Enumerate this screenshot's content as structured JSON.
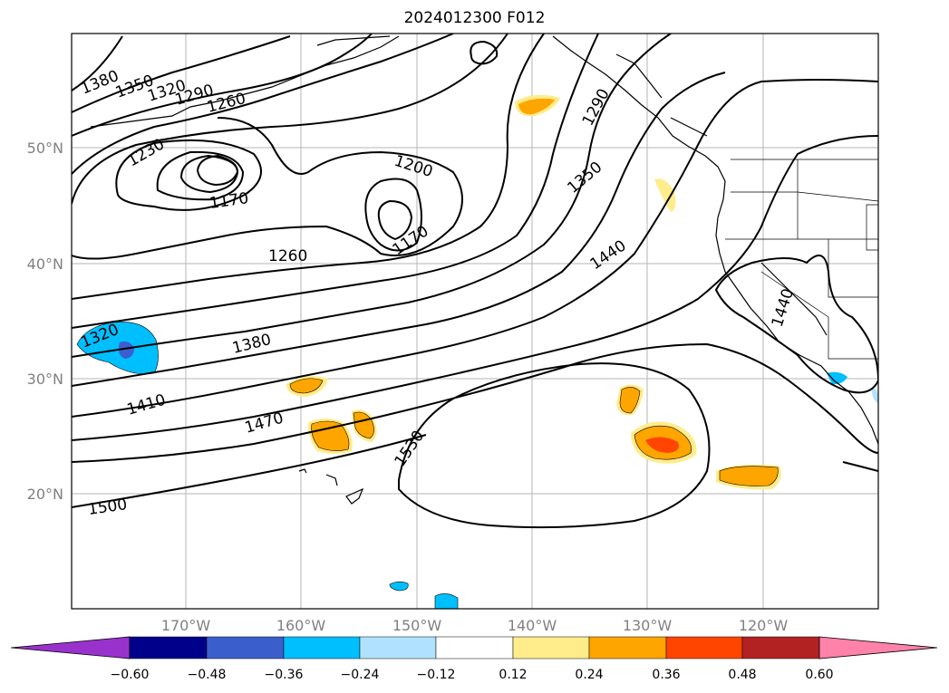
{
  "title": "2024012300 F012",
  "lat_labels": [
    "50°N",
    "40°N",
    "30°N",
    "20°N"
  ],
  "lon_labels": [
    "170°W",
    "160°W",
    "150°W",
    "140°W",
    "130°W",
    "120°W"
  ],
  "contour_labels": [
    "1380",
    "1350",
    "1320",
    "1290",
    "1260",
    "1230",
    "1200",
    "1170",
    "1170",
    "1290",
    "1350",
    "1440",
    "1260",
    "1380",
    "1320",
    "1410",
    "1470",
    "1530",
    "1500",
    "1440"
  ],
  "colorbar": {
    "tick_labels": [
      "−0.60",
      "−0.48",
      "−0.36",
      "−0.24",
      "−0.12",
      "0.12",
      "0.24",
      "0.36",
      "0.48",
      "0.60"
    ],
    "colors": [
      "#9932cc",
      "#00008b",
      "#3a5fcd",
      "#00bfff",
      "#b0e2ff",
      "#ffffff",
      "#ffec8b",
      "#ffa500",
      "#ff4500",
      "#b22222",
      "#ff82ab"
    ]
  },
  "fill_colors": {
    "pale_yellow": "#ffec8b",
    "orange": "#ffa500",
    "red_orange": "#ff4500",
    "light_blue": "#b0e2ff",
    "sky_blue": "#00bfff",
    "royal_blue": "#3a5fcd"
  }
}
